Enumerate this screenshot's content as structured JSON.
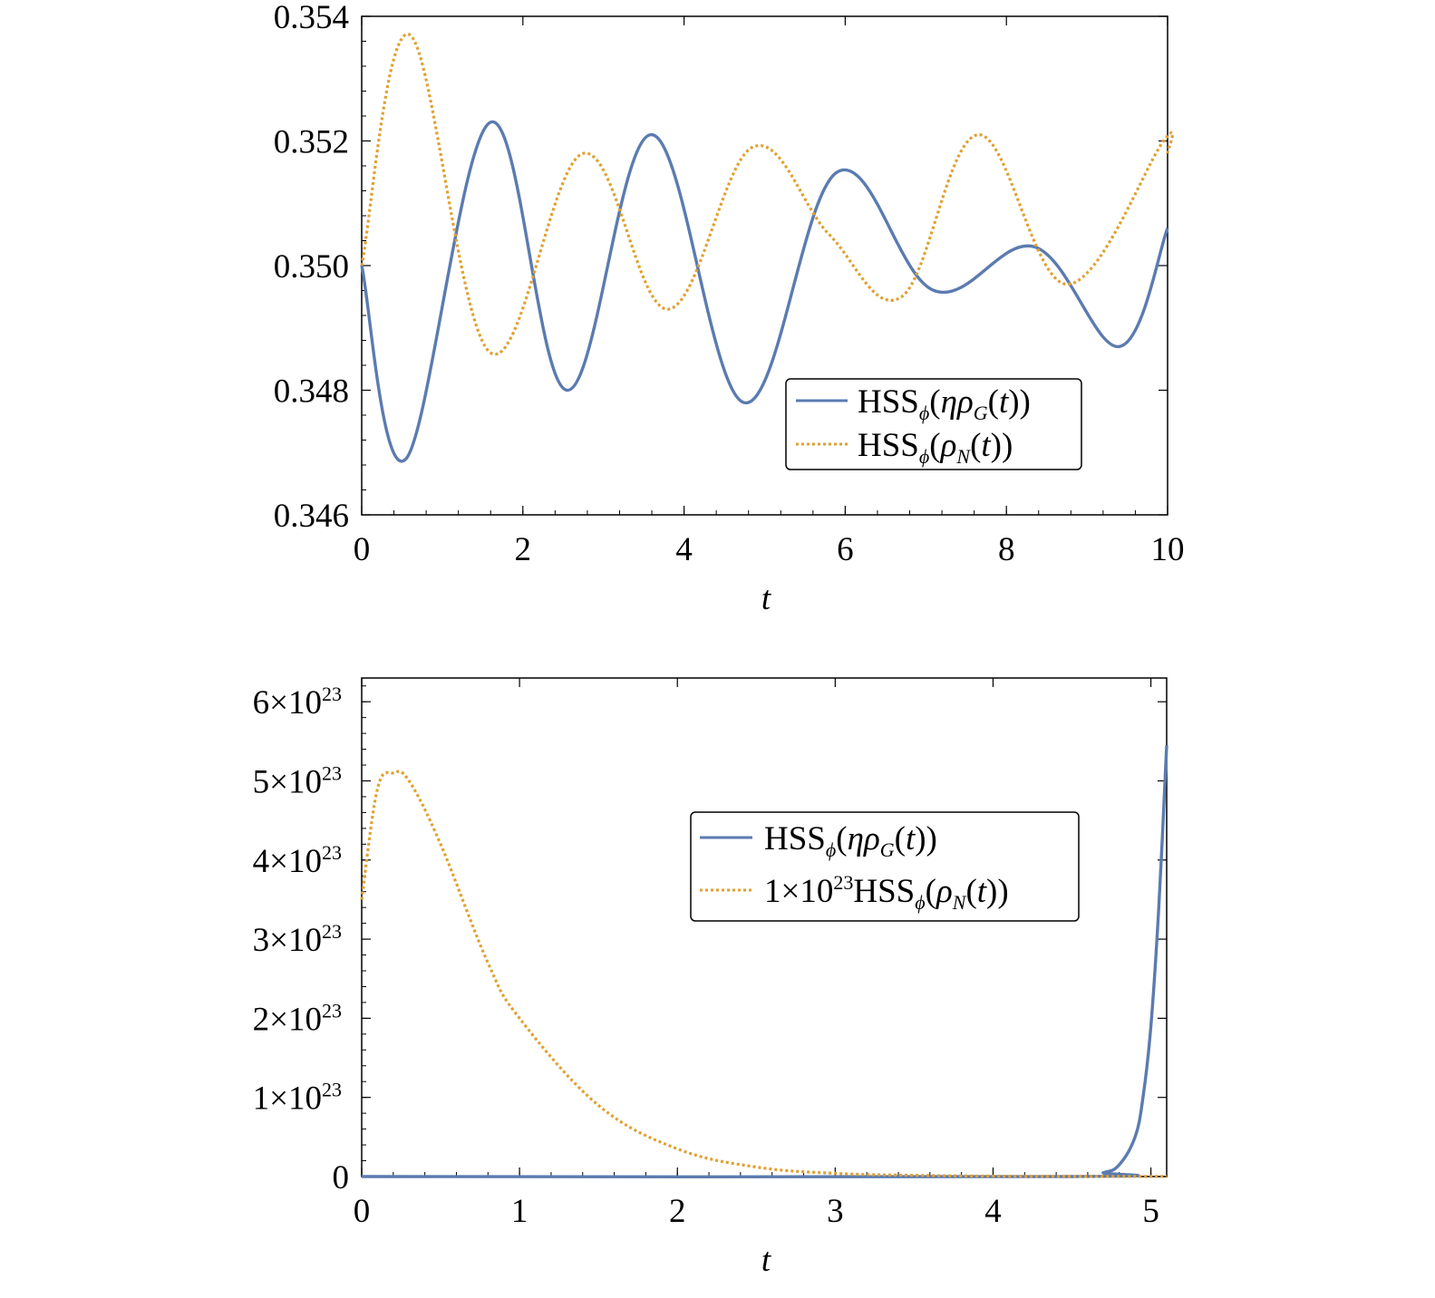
{
  "colors": {
    "blue": "#5B7BB0",
    "orange": "#E0A030",
    "axis": "#000000"
  },
  "chart_data": [
    {
      "type": "line",
      "xlabel": "t",
      "ylabel": "",
      "xlim": [
        0,
        10
      ],
      "ylim": [
        0.346,
        0.354
      ],
      "x_ticks": [
        0,
        2,
        4,
        6,
        8,
        10
      ],
      "x_tick_labels": [
        "0",
        "2",
        "4",
        "6",
        "8",
        "10"
      ],
      "y_ticks": [
        0.346,
        0.348,
        0.35,
        0.352,
        0.354
      ],
      "y_tick_labels": [
        "0.346",
        "0.348",
        "0.350",
        "0.352",
        "0.354"
      ],
      "legend_position": "lower-right",
      "legend": [
        {
          "series": 0,
          "text": "HSSϕ(ηρG(t))"
        },
        {
          "series": 1,
          "text": "HSSϕ(ρN(t))"
        }
      ],
      "series": [
        {
          "name": "HSSϕ(ηρG(t))",
          "style": "solid",
          "color": "#5B7BB0",
          "x": [
            0,
            0.55,
            1.6,
            2.55,
            3.6,
            4.75,
            5.9,
            7.1,
            8.35,
            9.4,
            10
          ],
          "y": [
            0.35,
            0.3469,
            0.3523,
            0.348,
            0.3521,
            0.3478,
            0.3515,
            0.3496,
            0.3503,
            0.3487,
            0.3506
          ]
        },
        {
          "name": "HSSϕ(ρN(t))",
          "style": "dotted",
          "color": "#E0A030",
          "x": [
            0,
            0.6,
            1.6,
            2.75,
            3.8,
            4.85,
            5.8,
            6.7,
            7.65,
            8.75,
            9.95,
            10
          ],
          "y": [
            0.35,
            0.3537,
            0.3486,
            0.3518,
            0.3493,
            0.3519,
            0.3505,
            0.3495,
            0.3521,
            0.3497,
            0.352,
            0.3518
          ]
        }
      ]
    },
    {
      "type": "line",
      "xlabel": "t",
      "ylabel": "",
      "xlim": [
        0,
        5.1
      ],
      "ylim": [
        0,
        6.3e+23
      ],
      "x_ticks": [
        0,
        1,
        2,
        3,
        4,
        5
      ],
      "x_tick_labels": [
        "0",
        "1",
        "2",
        "3",
        "4",
        "5"
      ],
      "y_ticks": [
        0,
        1e+23,
        2e+23,
        3e+23,
        4e+23,
        5e+23,
        6e+23
      ],
      "y_tick_labels": [
        {
          "mant": "0",
          "exp": ""
        },
        {
          "mant": "1×10",
          "exp": "23"
        },
        {
          "mant": "2×10",
          "exp": "23"
        },
        {
          "mant": "3×10",
          "exp": "23"
        },
        {
          "mant": "4×10",
          "exp": "23"
        },
        {
          "mant": "5×10",
          "exp": "23"
        },
        {
          "mant": "6×10",
          "exp": "23"
        }
      ],
      "legend_position": "top-right",
      "legend": [
        {
          "series": 0,
          "text": "HSSϕ(ηρG(t))"
        },
        {
          "series": 1,
          "text": "1×10²³HSSϕ(ρN(t))"
        }
      ],
      "series": [
        {
          "name": "HSSϕ(ηρG(t))",
          "style": "solid",
          "color": "#5B7BB0",
          "x": [
            0,
            4.5,
            4.7,
            4.8,
            4.9,
            4.95,
            5.0,
            5.05,
            5.1
          ],
          "y": [
            0,
            0,
            5e+21,
            1.5e+22,
            5e+22,
            1e+23,
            1.9e+23,
            3.4e+23,
            5.45e+23
          ]
        },
        {
          "name": "1×10²³HSSϕ(ρN(t))",
          "style": "dotted",
          "color": "#E0A030",
          "x": [
            0,
            0.1,
            0.2,
            0.3,
            0.5,
            0.8,
            1.0,
            1.5,
            2.0,
            2.5,
            3.0,
            3.5,
            4.0,
            4.5,
            5.1
          ],
          "y": [
            3.5e+23,
            4.9e+23,
            5.1e+23,
            5e+23,
            4.2e+23,
            2.7e+23,
            2e+23,
            9e+22,
            3.5e+22,
            1.2e+22,
            4e+21,
            1.5e+21,
            5e+20,
            2e+20,
            1e+20
          ]
        }
      ]
    }
  ]
}
